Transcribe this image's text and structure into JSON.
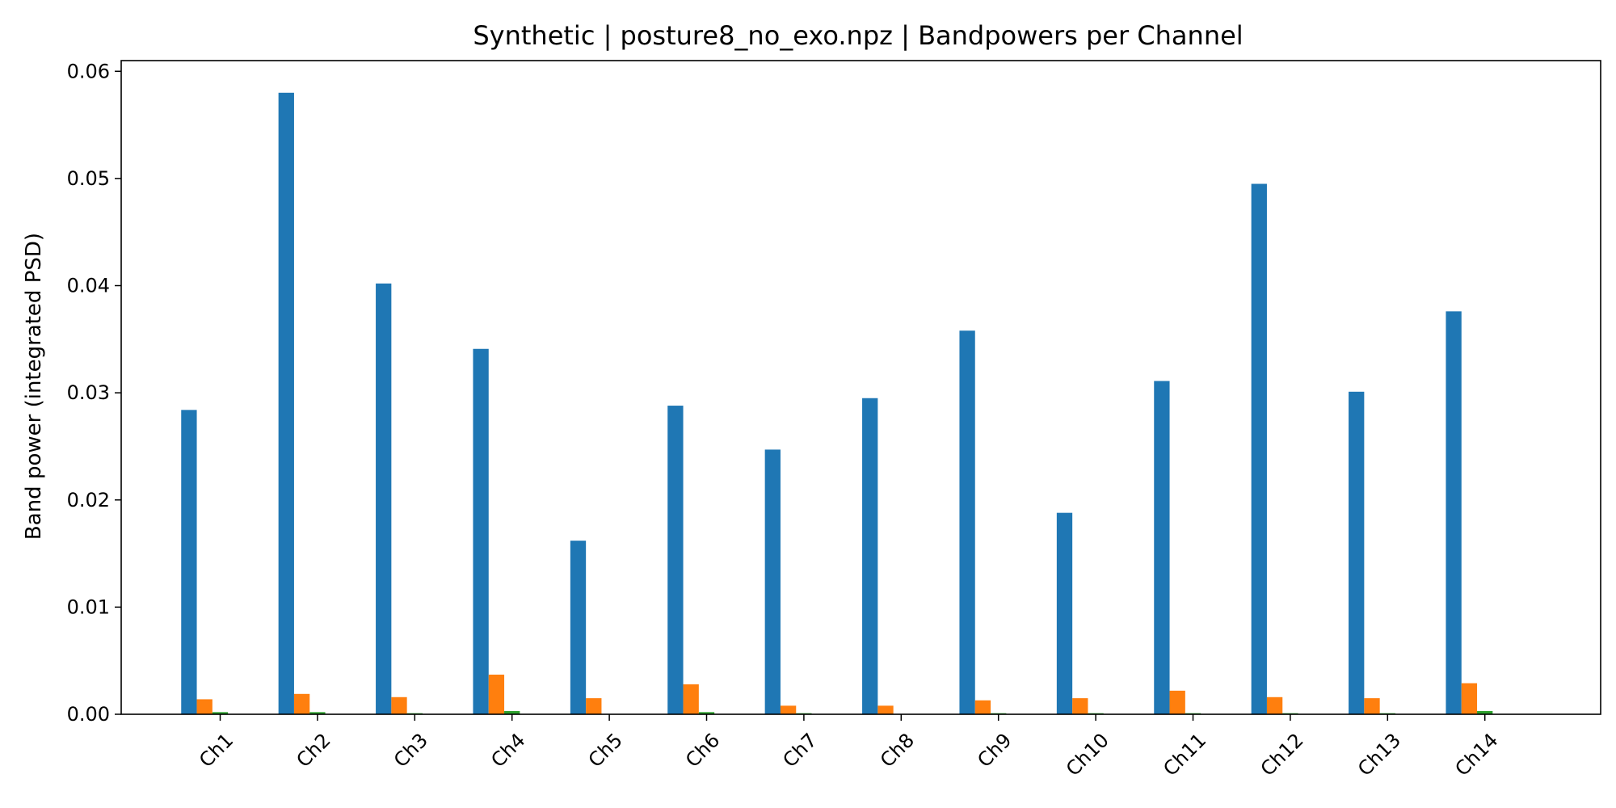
{
  "chart_data": {
    "type": "bar",
    "title": "Synthetic | posture8_no_exo.npz | Bandpowers per Channel",
    "xlabel": "",
    "ylabel": "Band power (integrated PSD)",
    "ylim": [
      0,
      0.061
    ],
    "yticks": [
      "0.00",
      "0.01",
      "0.02",
      "0.03",
      "0.04",
      "0.05",
      "0.06"
    ],
    "categories": [
      "Ch1",
      "Ch2",
      "Ch3",
      "Ch4",
      "Ch5",
      "Ch6",
      "Ch7",
      "Ch8",
      "Ch9",
      "Ch10",
      "Ch11",
      "Ch12",
      "Ch13",
      "Ch14"
    ],
    "grid": false,
    "legend": "none",
    "series": [
      {
        "color": "#1f77b4",
        "values": [
          0.0284,
          0.058,
          0.0402,
          0.0341,
          0.0162,
          0.0288,
          0.0247,
          0.0295,
          0.0358,
          0.0188,
          0.0311,
          0.0495,
          0.0301,
          0.0376
        ]
      },
      {
        "color": "#ff7f0e",
        "values": [
          0.0014,
          0.0019,
          0.0016,
          0.0037,
          0.0015,
          0.0028,
          0.0008,
          0.0008,
          0.0013,
          0.0015,
          0.0022,
          0.0016,
          0.0015,
          0.0029
        ]
      },
      {
        "color": "#2ca02c",
        "values": [
          0.0002,
          0.0002,
          0.0001,
          0.0003,
          0.0,
          0.0002,
          0.0001,
          0.0,
          0.0001,
          0.0001,
          0.0001,
          0.0001,
          0.0001,
          0.0003
        ]
      },
      {
        "color": "#d62728",
        "values": [
          0.0,
          0.0,
          0.0,
          0.0,
          0.0,
          0.0,
          0.0,
          0.0,
          0.0,
          0.0,
          0.0,
          0.0,
          0.0,
          0.0
        ]
      },
      {
        "color": "#9467bd",
        "values": [
          0.0,
          0.0,
          0.0,
          0.0,
          0.0,
          0.0,
          0.0,
          0.0,
          0.0,
          0.0,
          0.0,
          0.0,
          0.0,
          0.0
        ]
      }
    ]
  }
}
